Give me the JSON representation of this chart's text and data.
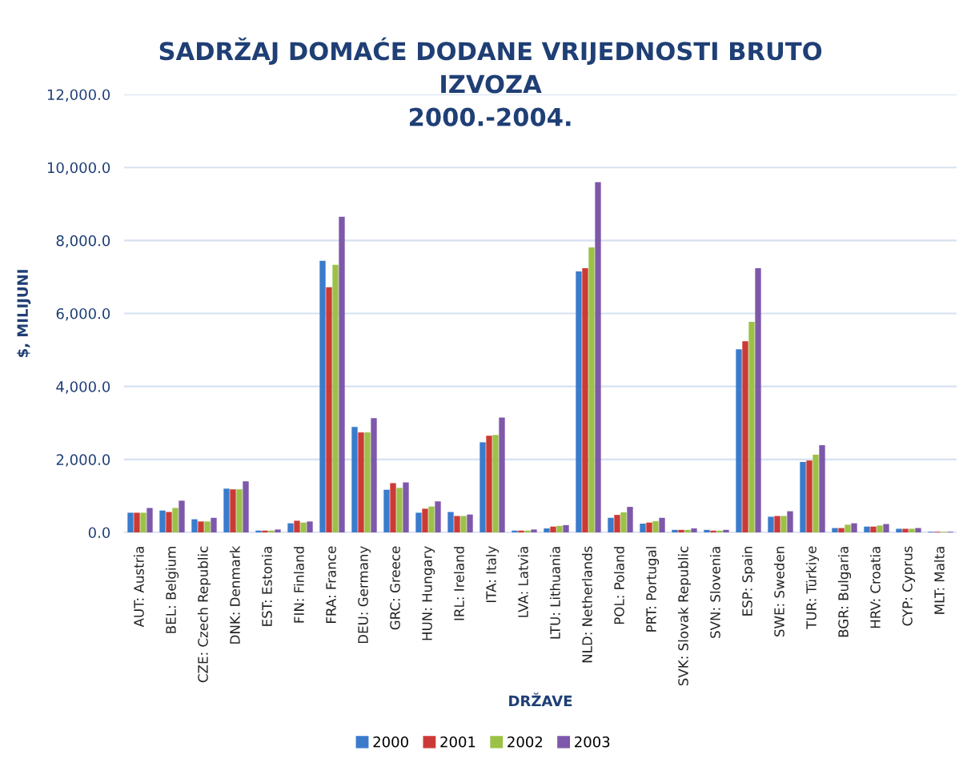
{
  "chart_data": {
    "type": "bar",
    "title": "SADRŽAJ DOMAĆE DODANE VRIJEDNOSTI BRUTO\nIZVOZA\n2000.-2004.",
    "xlabel": "DRŽAVE",
    "ylabel": "$, MILIJUNI",
    "categories": [
      "AUT: Austria",
      "BEL: Belgium",
      "CZE: Czech Republic",
      "DNK: Denmark",
      "EST: Estonia",
      "FIN: Finland",
      "FRA: France",
      "DEU: Germany",
      "GRC: Greece",
      "HUN: Hungary",
      "IRL: Ireland",
      "ITA: Italy",
      "LVA: Latvia",
      "LTU: Lithuania",
      "NLD: Netherlands",
      "POL: Poland",
      "PRT: Portugal",
      "SVK: Slovak Republic",
      "SVN: Slovenia",
      "ESP: Spain",
      "SWE: Sweden",
      "TUR: Türkiye",
      "BGR: Bulgaria",
      "HRV: Croatia",
      "CYP: Cyprus",
      "MLT: Malta"
    ],
    "series": [
      {
        "name": "2000",
        "color": "#3a7bcc",
        "values": [
          540,
          600,
          360,
          1200,
          50,
          250,
          7440,
          2890,
          1170,
          540,
          560,
          2470,
          50,
          110,
          7150,
          400,
          240,
          70,
          70,
          5020,
          430,
          1930,
          120,
          160,
          100,
          20
        ]
      },
      {
        "name": "2001",
        "color": "#cc3a37",
        "values": [
          540,
          560,
          300,
          1180,
          50,
          320,
          6720,
          2740,
          1350,
          650,
          450,
          2650,
          50,
          160,
          7240,
          480,
          270,
          70,
          50,
          5240,
          450,
          1970,
          120,
          160,
          100,
          20
        ]
      },
      {
        "name": "2002",
        "color": "#9bc246",
        "values": [
          540,
          670,
          300,
          1180,
          50,
          270,
          7330,
          2740,
          1220,
          710,
          450,
          2670,
          50,
          180,
          7810,
          550,
          310,
          70,
          50,
          5770,
          450,
          2130,
          210,
          190,
          100,
          20
        ]
      },
      {
        "name": "2003",
        "color": "#7e58aa",
        "values": [
          670,
          870,
          400,
          1400,
          80,
          300,
          8650,
          3130,
          1370,
          850,
          490,
          3150,
          80,
          200,
          9600,
          700,
          400,
          110,
          70,
          7240,
          580,
          2390,
          250,
          230,
          120,
          20
        ]
      }
    ],
    "ylim": [
      0,
      12000
    ],
    "yticks": [
      {
        "value": 0,
        "label": "0.0"
      },
      {
        "value": 2000,
        "label": "2,000.0"
      },
      {
        "value": 4000,
        "label": "4,000.0"
      },
      {
        "value": 6000,
        "label": "6,000.0"
      },
      {
        "value": 8000,
        "label": "8,000.0"
      },
      {
        "value": 10000,
        "label": "10,000.0"
      },
      {
        "value": 12000,
        "label": "12,000.0"
      }
    ],
    "grid": "y",
    "legend": "bottom"
  }
}
